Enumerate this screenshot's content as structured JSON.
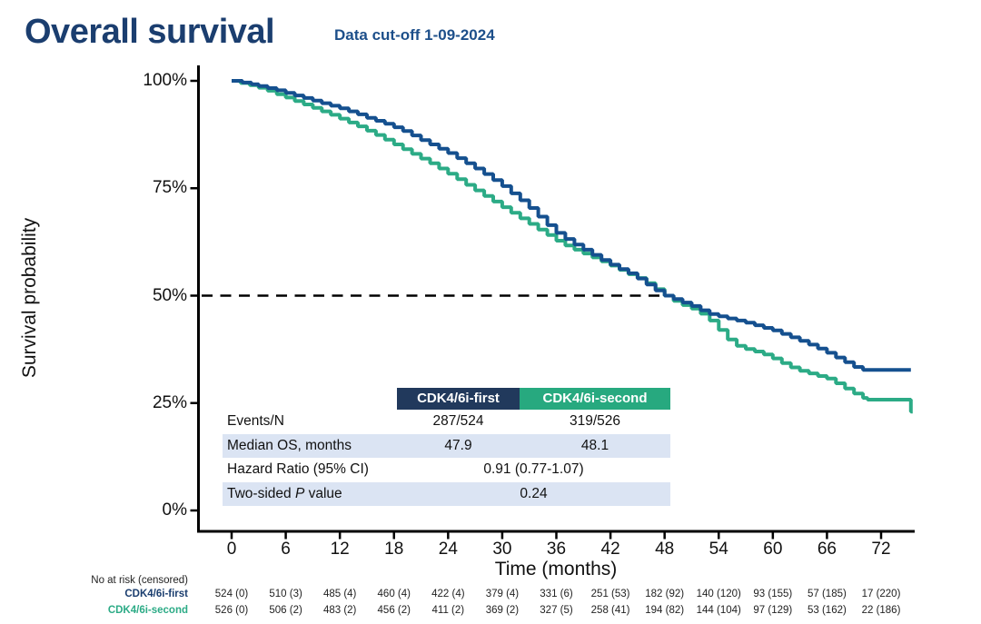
{
  "header": {
    "title": "Overall survival",
    "subtitle": "Data cut-off 1-09-2024"
  },
  "colors": {
    "title_navy": "#1b3e6f",
    "subtitle_navy": "#1d4f8a",
    "axis": "#000000",
    "curve_first": "#15508f",
    "curve_second": "#2cab86",
    "header_first_bg": "#21395c",
    "header_second_bg": "#27a97f",
    "row_highlight": "#dbe4f3"
  },
  "chart_data": {
    "type": "line",
    "subtype": "kaplan-meier-step",
    "title": "Overall survival",
    "xlabel": "Time (months)",
    "ylabel": "Survival probability",
    "x_ticks": [
      0,
      6,
      12,
      18,
      24,
      30,
      36,
      42,
      48,
      54,
      60,
      66,
      72
    ],
    "y_ticks_pct": [
      0,
      25,
      50,
      75,
      100
    ],
    "y_tick_labels": [
      "0%",
      "25%",
      "50%",
      "75%",
      "100%"
    ],
    "xlim_months": [
      0,
      75.5
    ],
    "ylim_pct": [
      0,
      100
    ],
    "grid": false,
    "reference_line": {
      "y_pct": 50,
      "style": "dashed",
      "x_start_month": -3.3,
      "x_end_month": 48.4
    },
    "series": [
      {
        "name": "CDK4/6i-first",
        "color": "#15508f",
        "points": [
          [
            0,
            100
          ],
          [
            1.2,
            99.6
          ],
          [
            2.2,
            99.2
          ],
          [
            3,
            98.8
          ],
          [
            4,
            98.3
          ],
          [
            5,
            97.8
          ],
          [
            6,
            97.2
          ],
          [
            7,
            96.6
          ],
          [
            8,
            96
          ],
          [
            9,
            95.4
          ],
          [
            10,
            94.8
          ],
          [
            11,
            94.2
          ],
          [
            12,
            93.6
          ],
          [
            13,
            92.9
          ],
          [
            14,
            92.2
          ],
          [
            15,
            91.4
          ],
          [
            16,
            90.7
          ],
          [
            17,
            90
          ],
          [
            18,
            89.2
          ],
          [
            19,
            88.3
          ],
          [
            20,
            87.3
          ],
          [
            21,
            86.2
          ],
          [
            22,
            85.2
          ],
          [
            23,
            84.2
          ],
          [
            24,
            83.2
          ],
          [
            25,
            82
          ],
          [
            26,
            80.8
          ],
          [
            27,
            79.6
          ],
          [
            28,
            78.3
          ],
          [
            29,
            76.9
          ],
          [
            30,
            75.5
          ],
          [
            31,
            73.8
          ],
          [
            32,
            72.2
          ],
          [
            33,
            70.4
          ],
          [
            34,
            68.4
          ],
          [
            35,
            66.4
          ],
          [
            36,
            64.6
          ],
          [
            37,
            63.2
          ],
          [
            38,
            61.9
          ],
          [
            39,
            60.7
          ],
          [
            40,
            59.5
          ],
          [
            41,
            58.3
          ],
          [
            42,
            57.2
          ],
          [
            43,
            56.2
          ],
          [
            44,
            55.2
          ],
          [
            45,
            54
          ],
          [
            46,
            52.6
          ],
          [
            47,
            51.2
          ],
          [
            48,
            50
          ],
          [
            49,
            49.2
          ],
          [
            50,
            48.4
          ],
          [
            51,
            47.6
          ],
          [
            52,
            46.6
          ],
          [
            53,
            45.7
          ],
          [
            54,
            45.2
          ],
          [
            55,
            44.7
          ],
          [
            56,
            44.2
          ],
          [
            57,
            43.7
          ],
          [
            58,
            43.1
          ],
          [
            59,
            42.5
          ],
          [
            60,
            41.9
          ],
          [
            61,
            41.1
          ],
          [
            62,
            40.3
          ],
          [
            63,
            39.5
          ],
          [
            64,
            38.6
          ],
          [
            65,
            37.7
          ],
          [
            66,
            36.7
          ],
          [
            67,
            35.6
          ],
          [
            68,
            34.5
          ],
          [
            69,
            33.4
          ],
          [
            70,
            32.7
          ],
          [
            75.3,
            32.7
          ]
        ]
      },
      {
        "name": "CDK4/6i-second",
        "color": "#2cab86",
        "points": [
          [
            0,
            100
          ],
          [
            1,
            99.5
          ],
          [
            2,
            99
          ],
          [
            3,
            98.4
          ],
          [
            4,
            97.7
          ],
          [
            5,
            96.9
          ],
          [
            6,
            96.1
          ],
          [
            7,
            95.3
          ],
          [
            8,
            94.5
          ],
          [
            9,
            93.7
          ],
          [
            10,
            92.9
          ],
          [
            11,
            92.1
          ],
          [
            12,
            91.2
          ],
          [
            13,
            90.3
          ],
          [
            14,
            89.4
          ],
          [
            15,
            88.4
          ],
          [
            16,
            87.4
          ],
          [
            17,
            86.3
          ],
          [
            18,
            85.2
          ],
          [
            19,
            84.1
          ],
          [
            20,
            83
          ],
          [
            21,
            81.9
          ],
          [
            22,
            80.8
          ],
          [
            23,
            79.6
          ],
          [
            24,
            78.4
          ],
          [
            25,
            77.1
          ],
          [
            26,
            75.8
          ],
          [
            27,
            74.5
          ],
          [
            28,
            73.2
          ],
          [
            29,
            71.9
          ],
          [
            30,
            70.6
          ],
          [
            31,
            69.3
          ],
          [
            32,
            68
          ],
          [
            33,
            66.7
          ],
          [
            34,
            65.4
          ],
          [
            35,
            64.1
          ],
          [
            36,
            62.8
          ],
          [
            37,
            61.7
          ],
          [
            38,
            60.7
          ],
          [
            39,
            59.8
          ],
          [
            40,
            58.9
          ],
          [
            41,
            58
          ],
          [
            42,
            57
          ],
          [
            43,
            56
          ],
          [
            44,
            55
          ],
          [
            45,
            54.1
          ],
          [
            46,
            52.9
          ],
          [
            47,
            51.5
          ],
          [
            48,
            50
          ],
          [
            49,
            48.8
          ],
          [
            50,
            47.8
          ],
          [
            51,
            47
          ],
          [
            52,
            45.8
          ],
          [
            53,
            44.2
          ],
          [
            54,
            42
          ],
          [
            55,
            39.8
          ],
          [
            56,
            38.3
          ],
          [
            57,
            37.6
          ],
          [
            58,
            37
          ],
          [
            59,
            36.3
          ],
          [
            60,
            35.4
          ],
          [
            61,
            34.3
          ],
          [
            62,
            33.3
          ],
          [
            63,
            32.5
          ],
          [
            64,
            31.9
          ],
          [
            65,
            31.3
          ],
          [
            66,
            30.7
          ],
          [
            67,
            29.6
          ],
          [
            68,
            28.4
          ],
          [
            69,
            27.2
          ],
          [
            70,
            26.2
          ],
          [
            70.5,
            25.8
          ],
          [
            75.3,
            25.8
          ],
          [
            75.3,
            23
          ],
          [
            75.5,
            23
          ]
        ]
      }
    ]
  },
  "stats_table": {
    "col_headers": [
      "CDK4/6i-first",
      "CDK4/6i-second"
    ],
    "rows": {
      "events": {
        "label": "Events/N",
        "first": "287/524",
        "second": "319/526"
      },
      "median": {
        "label": "Median OS, months",
        "first": "47.9",
        "second": "48.1"
      },
      "hazard": {
        "label": "Hazard Ratio (95% CI)",
        "merged": "0.91 (0.77-1.07)"
      },
      "pvalue": {
        "label_prefix": "Two-sided ",
        "label_emph": "P",
        "label_suffix": " value",
        "merged": "0.24"
      }
    }
  },
  "risk_table": {
    "caption": "No at risk (censored)",
    "rows": [
      {
        "name": "CDK4/6i-first",
        "color": "#1b3e6f",
        "values": [
          "524 (0)",
          "510 (3)",
          "485 (4)",
          "460 (4)",
          "422 (4)",
          "379 (4)",
          "331 (6)",
          "251 (53)",
          "182 (92)",
          "140 (120)",
          "93 (155)",
          "57 (185)",
          "17 (220)"
        ]
      },
      {
        "name": "CDK4/6i-second",
        "color": "#2cab86",
        "values": [
          "526 (0)",
          "506 (2)",
          "483 (2)",
          "456 (2)",
          "411 (2)",
          "369 (2)",
          "327 (5)",
          "258 (41)",
          "194 (82)",
          "144 (104)",
          "97 (129)",
          "53 (162)",
          "22 (186)"
        ]
      }
    ]
  }
}
